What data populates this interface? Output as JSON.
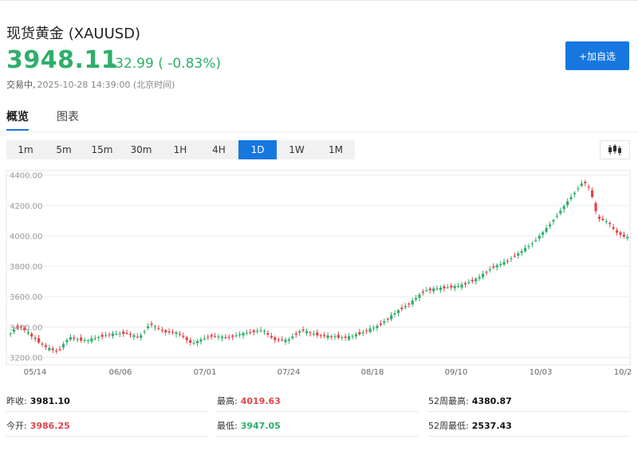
{
  "header": {
    "title": "现货黄金 (XAUUSD)",
    "price": "3948.11",
    "change": "-32.99 ( -0.83%)",
    "status": "交易中,",
    "timestamp": "2025-10-28 14:39:00 (北京时间)",
    "add_button": "+加自选"
  },
  "tabs": [
    {
      "label": "概览",
      "active": true
    },
    {
      "label": "图表",
      "active": false
    }
  ],
  "intervals": [
    "1m",
    "5m",
    "15m",
    "30m",
    "1H",
    "4H",
    "1D",
    "1W",
    "1M"
  ],
  "active_interval": "1D",
  "chart_icon": "candlestick-icon",
  "colors": {
    "up": "#2fae6a",
    "down": "#e0454b",
    "accent": "#1677e0"
  },
  "chart_data": {
    "type": "candlestick",
    "y_ticks": [
      "4400.00",
      "4200.00",
      "4000.00",
      "3800.00",
      "3600.00",
      "3400.00",
      "3200.00"
    ],
    "x_ticks": [
      "05/14",
      "06/06",
      "07/01",
      "07/24",
      "08/18",
      "09/10",
      "10/03",
      "10/2"
    ],
    "ylim": [
      3150,
      4430
    ],
    "grid": true
  },
  "stats": {
    "prev_close": {
      "label": "昨收:",
      "value": "3981.10"
    },
    "high": {
      "label": "最高:",
      "value": "4019.63"
    },
    "high_52w": {
      "label": "52周最高:",
      "value": "4380.87"
    },
    "open": {
      "label": "今开:",
      "value": "3986.25"
    },
    "low": {
      "label": "最低:",
      "value": "3947.05"
    },
    "low_52w": {
      "label": "52周最低:",
      "value": "2537.43"
    }
  }
}
